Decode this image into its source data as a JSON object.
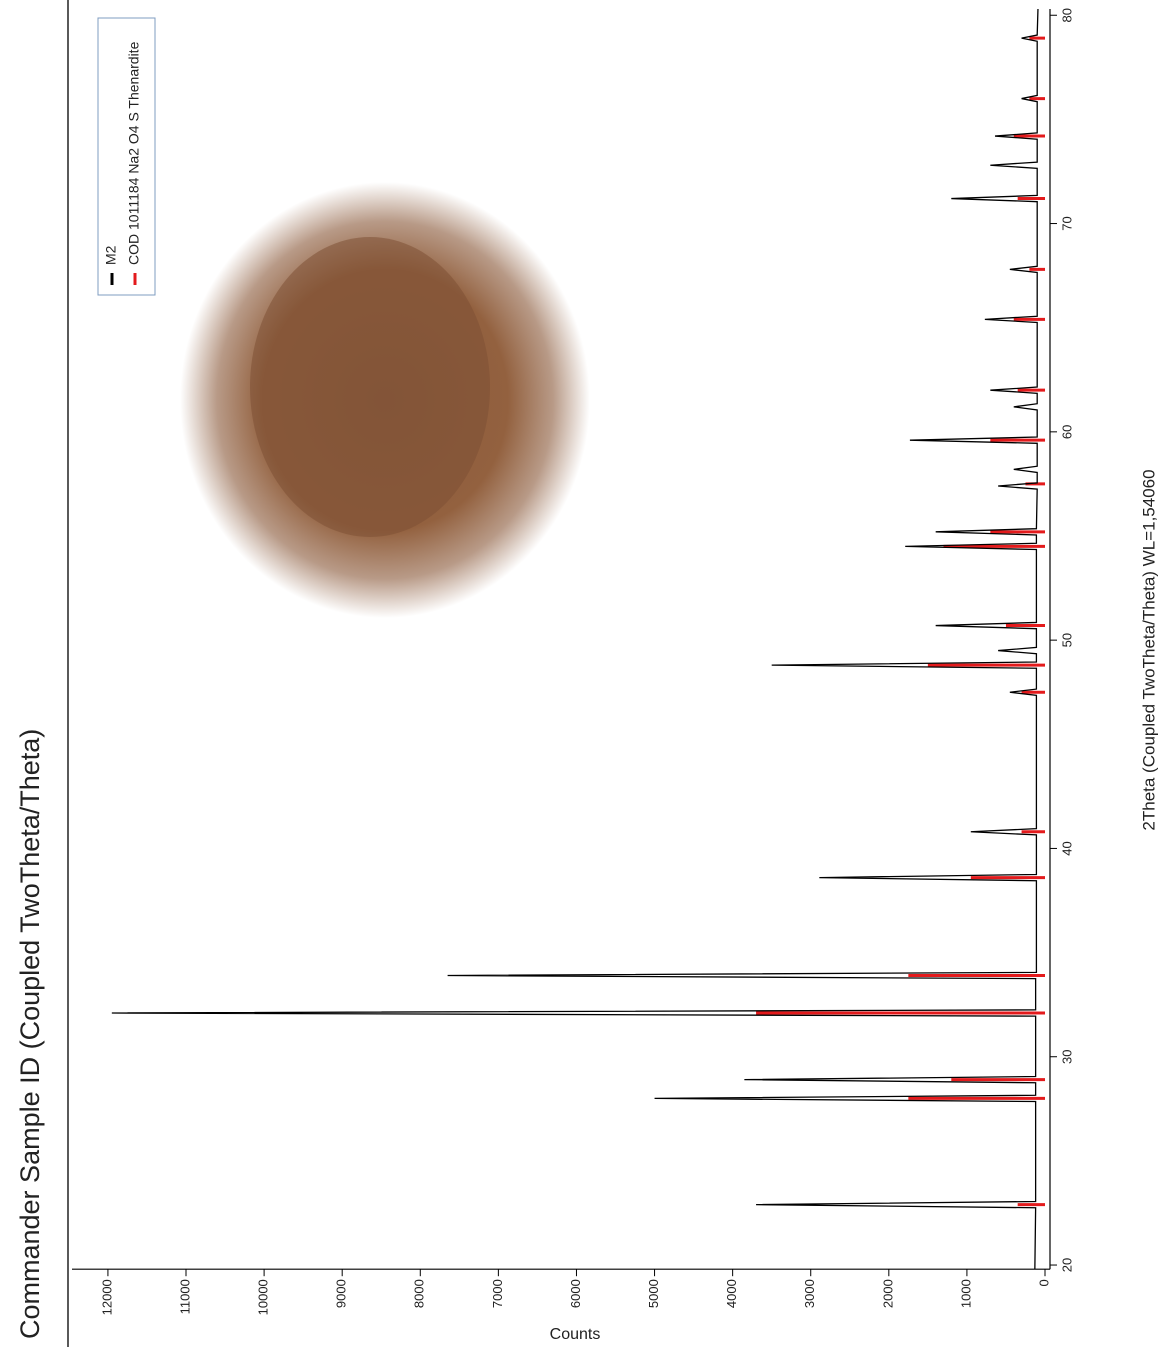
{
  "chart_data": {
    "type": "xrd",
    "title": "Commander Sample ID (Coupled TwoTheta/Theta)",
    "x_label": "2Theta (Coupled TwoTheta/Theta) WL=1,54060",
    "y_label": "Counts",
    "xlim": [
      19.8,
      80.3
    ],
    "ylim": [
      -64,
      12460
    ],
    "xticks": [
      20,
      30,
      40,
      50,
      60,
      70,
      80
    ],
    "yticks": [
      0,
      1000,
      2000,
      3000,
      4000,
      5000,
      6000,
      7000,
      8000,
      9000,
      10000,
      11000,
      12000
    ],
    "series": [
      {
        "name": "M2",
        "color": "#000000",
        "style": "line",
        "x": [
          19.8,
          22.75,
          22.9,
          23.05,
          27.85,
          28.0,
          28.15,
          28.75,
          28.9,
          29.05,
          31.95,
          32.1,
          32.25,
          33.75,
          33.9,
          34.05,
          38.45,
          38.6,
          38.75,
          40.65,
          40.8,
          40.95,
          47.35,
          47.5,
          47.65,
          48.65,
          48.8,
          48.95,
          49.35,
          49.5,
          49.65,
          50.55,
          50.7,
          50.85,
          54.35,
          54.5,
          54.65,
          55.05,
          55.2,
          55.35,
          57.25,
          57.4,
          57.55,
          58.05,
          58.2,
          58.35,
          59.45,
          59.6,
          59.75,
          61.05,
          61.2,
          61.35,
          61.85,
          62.0,
          62.15,
          65.25,
          65.4,
          65.55,
          67.65,
          67.8,
          67.95,
          71.05,
          71.2,
          71.35,
          72.65,
          72.8,
          72.95,
          74.05,
          74.2,
          74.35,
          75.85,
          76.0,
          76.15,
          78.75,
          78.9,
          79.05,
          80.3
        ],
        "values": [
          130,
          120,
          3700,
          120,
          120,
          5000,
          120,
          120,
          3850,
          120,
          120,
          11950,
          120,
          120,
          7650,
          110,
          110,
          2890,
          110,
          110,
          950,
          110,
          110,
          450,
          110,
          110,
          3500,
          110,
          110,
          600,
          110,
          110,
          1400,
          110,
          110,
          1790,
          110,
          110,
          1400,
          110,
          100,
          600,
          100,
          100,
          400,
          100,
          100,
          1730,
          100,
          100,
          400,
          100,
          100,
          700,
          100,
          100,
          770,
          100,
          100,
          450,
          100,
          100,
          1200,
          100,
          100,
          700,
          100,
          100,
          640,
          100,
          100,
          300,
          100,
          100,
          300,
          100,
          90
        ]
      },
      {
        "name": "COD 1011184 Na2 O4 S Thenardite",
        "color": "#e31a1c",
        "style": "sticks",
        "x": [
          22.9,
          28.0,
          28.9,
          32.1,
          33.9,
          38.6,
          40.8,
          47.5,
          48.8,
          50.7,
          54.5,
          55.2,
          57.5,
          59.6,
          62.0,
          65.4,
          67.8,
          71.2,
          74.2,
          76.0,
          78.9
        ],
        "values": [
          350,
          1750,
          1200,
          3700,
          1750,
          950,
          300,
          300,
          1500,
          500,
          1300,
          700,
          250,
          700,
          350,
          400,
          200,
          350,
          400,
          200,
          200
        ]
      }
    ]
  }
}
